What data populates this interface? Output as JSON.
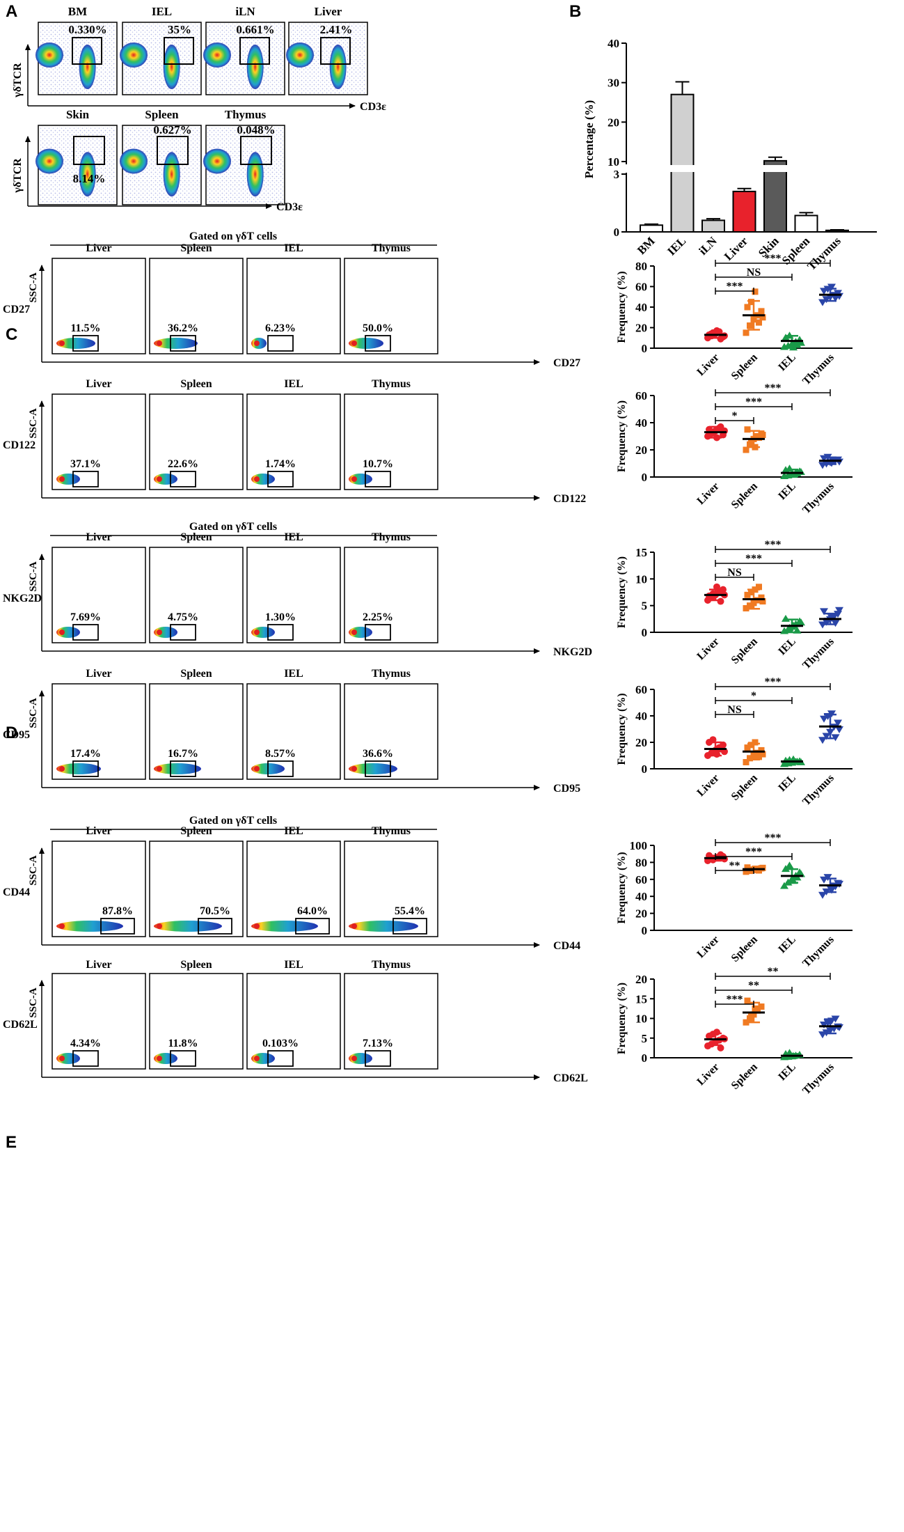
{
  "figure": {
    "panel_letters": {
      "a": "A",
      "b": "B",
      "c": "C",
      "d": "D",
      "e": "E"
    },
    "gated_label": "Gated on   γδT cells",
    "ylab_ssc": "SSC-A"
  },
  "panel_a": {
    "y_label": "γδTCR",
    "x_label": "CD3ε",
    "plots": [
      {
        "tissue": "BM",
        "pct": "0.330%"
      },
      {
        "tissue": "IEL",
        "pct": "35%"
      },
      {
        "tissue": "iLN",
        "pct": "0.661%"
      },
      {
        "tissue": "Liver",
        "pct": "2.41%"
      },
      {
        "tissue": "Skin",
        "pct": "8.14%"
      },
      {
        "tissue": "Spleen",
        "pct": "0.627%"
      },
      {
        "tissue": "Thymus",
        "pct": "0.048%"
      }
    ]
  },
  "panel_c": {
    "rows": [
      {
        "marker": "CD27",
        "pcts": [
          "11.5%",
          "36.2%",
          "6.23%",
          "50.0%"
        ]
      },
      {
        "marker": "CD122",
        "pcts": [
          "37.1%",
          "22.6%",
          "1.74%",
          "10.7%"
        ]
      }
    ]
  },
  "panel_d": {
    "rows": [
      {
        "marker": "NKG2D",
        "pcts": [
          "7.69%",
          "4.75%",
          "1.30%",
          "2.25%"
        ]
      },
      {
        "marker": "CD95",
        "pcts": [
          "17.4%",
          "16.7%",
          "8.57%",
          "36.6%"
        ]
      }
    ]
  },
  "panel_e": {
    "rows": [
      {
        "marker": "CD44",
        "pcts": [
          "87.8%",
          "70.5%",
          "64.0%",
          "55.4%"
        ]
      },
      {
        "marker": "CD62L",
        "pcts": [
          "4.34%",
          "11.8%",
          "0.103%",
          "7.13%"
        ]
      }
    ]
  },
  "tissues4": [
    "Liver",
    "Spleen",
    "IEL",
    "Thymus"
  ],
  "colors": {
    "liver": "#e8222c",
    "spleen": "#f07a22",
    "iel": "#1a9a48",
    "thymus": "#2a45a8",
    "bar_light": "#d0d0d0",
    "bar_dark": "#5a5a5a",
    "flow_bg": "#2030b0"
  },
  "chart_data": [
    {
      "type": "bar",
      "title": "",
      "xlabel": "",
      "ylabel": "Percentage (%)",
      "categories": [
        "BM",
        "IEL",
        "iLN",
        "Liver",
        "Skin",
        "Spleen",
        "Thymus"
      ],
      "values": [
        0.35,
        27,
        0.6,
        2.1,
        10.2,
        0.85,
        0.08
      ],
      "errors": [
        0.05,
        3.2,
        0.08,
        0.15,
        0.9,
        0.15,
        0.03
      ],
      "ylim": [
        0,
        40
      ],
      "axis_break": [
        3,
        10
      ],
      "yticks": [
        0,
        3,
        10,
        20,
        30,
        40
      ],
      "bar_colors": [
        "#ffffff",
        "#d0d0d0",
        "#d0d0d0",
        "#e8222c",
        "#5a5a5a",
        "#ffffff",
        "#5a5a5a"
      ]
    },
    {
      "type": "scatter",
      "panel": "C",
      "marker": "CD27",
      "ylabel": "Frequency (%)",
      "categories": [
        "Liver",
        "Spleen",
        "IEL",
        "Thymus"
      ],
      "means": [
        13,
        32,
        7,
        52
      ],
      "sd": [
        3,
        14,
        5,
        6
      ],
      "points": [
        [
          10,
          12,
          14,
          16,
          11,
          13,
          15,
          17,
          9,
          12
        ],
        [
          15,
          22,
          28,
          32,
          36,
          40,
          45,
          55,
          25,
          30
        ],
        [
          1,
          2,
          4,
          6,
          8,
          10,
          12,
          0.5,
          3,
          5
        ],
        [
          45,
          48,
          50,
          52,
          54,
          56,
          58,
          60,
          49,
          51
        ]
      ],
      "ylim": [
        0,
        80
      ],
      "yticks": [
        0,
        20,
        40,
        60,
        80
      ],
      "sig": [
        {
          "from": 0,
          "to": 1,
          "label": "***"
        },
        {
          "from": 0,
          "to": 2,
          "label": "NS"
        },
        {
          "from": 0,
          "to": 3,
          "label": "***"
        }
      ]
    },
    {
      "type": "scatter",
      "panel": "C",
      "marker": "CD122",
      "ylabel": "Frequency (%)",
      "categories": [
        "Liver",
        "Spleen",
        "IEL",
        "Thymus"
      ],
      "means": [
        33,
        28,
        3,
        12
      ],
      "sd": [
        4,
        6,
        2.5,
        2.5
      ],
      "points": [
        [
          30,
          32,
          34,
          36,
          31,
          35,
          33,
          29,
          37,
          34
        ],
        [
          20,
          24,
          28,
          30,
          32,
          35,
          26,
          22,
          29,
          31
        ],
        [
          0.5,
          1,
          2,
          3,
          4,
          5,
          6,
          1.5,
          2.5,
          3.5
        ],
        [
          9,
          10,
          11,
          12,
          13,
          14,
          15,
          10.5,
          12.5,
          11.5
        ]
      ],
      "ylim": [
        0,
        60
      ],
      "yticks": [
        0,
        20,
        40,
        60
      ],
      "sig": [
        {
          "from": 0,
          "to": 1,
          "label": "*"
        },
        {
          "from": 0,
          "to": 2,
          "label": "***"
        },
        {
          "from": 0,
          "to": 3,
          "label": "***"
        }
      ]
    },
    {
      "type": "scatter",
      "panel": "D",
      "marker": "NKG2D",
      "ylabel": "Frequency (%)",
      "categories": [
        "Liver",
        "Spleen",
        "IEL",
        "Thymus"
      ],
      "means": [
        7,
        6.2,
        1.2,
        2.5
      ],
      "sd": [
        1,
        1.8,
        1.2,
        1
      ],
      "points": [
        [
          6,
          6.5,
          7,
          7.5,
          8,
          6.8,
          7.2,
          8.5,
          5.8,
          7
        ],
        [
          4.5,
          5,
          5.5,
          6,
          6.5,
          7,
          7.5,
          8,
          8.5,
          5.8
        ],
        [
          0.2,
          0.5,
          1,
          1.5,
          2,
          2.5,
          0.8,
          1.2,
          0.3,
          1.8
        ],
        [
          1.5,
          2,
          2.5,
          3,
          3.5,
          4,
          2.2,
          2.8,
          1.8,
          4.2
        ]
      ],
      "ylim": [
        0,
        15
      ],
      "yticks": [
        0,
        5,
        10,
        15
      ],
      "sig": [
        {
          "from": 0,
          "to": 1,
          "label": "NS"
        },
        {
          "from": 0,
          "to": 2,
          "label": "***"
        },
        {
          "from": 0,
          "to": 3,
          "label": "***"
        }
      ]
    },
    {
      "type": "scatter",
      "panel": "D",
      "marker": "CD95",
      "ylabel": "Frequency (%)",
      "categories": [
        "Liver",
        "Spleen",
        "IEL",
        "Thymus"
      ],
      "means": [
        15,
        13,
        5.5,
        32
      ],
      "sd": [
        5,
        6,
        1.5,
        9
      ],
      "points": [
        [
          10,
          12,
          14,
          16,
          18,
          20,
          22,
          11,
          15,
          13
        ],
        [
          5,
          8,
          10,
          12,
          14,
          16,
          18,
          20,
          9,
          11
        ],
        [
          3.5,
          4,
          4.5,
          5,
          5.5,
          6,
          6.5,
          7,
          5.2,
          4.8
        ],
        [
          22,
          25,
          28,
          32,
          35,
          38,
          40,
          42,
          24,
          30
        ]
      ],
      "ylim": [
        0,
        60
      ],
      "yticks": [
        0,
        20,
        40,
        60
      ],
      "sig": [
        {
          "from": 0,
          "to": 1,
          "label": "NS"
        },
        {
          "from": 0,
          "to": 2,
          "label": "*"
        },
        {
          "from": 0,
          "to": 3,
          "label": "***"
        }
      ]
    },
    {
      "type": "scatter",
      "panel": "E",
      "marker": "CD44",
      "ylabel": "Frequency (%)",
      "categories": [
        "Liver",
        "Spleen",
        "IEL",
        "Thymus"
      ],
      "means": [
        85,
        72,
        64,
        53
      ],
      "sd": [
        3,
        2,
        8,
        8
      ],
      "points": [
        [
          82,
          84,
          85,
          86,
          87,
          88,
          83,
          86,
          89,
          84
        ],
        [
          69,
          70,
          71,
          72,
          73,
          74,
          71.5,
          72.5,
          70.5,
          73.5
        ],
        [
          52,
          56,
          60,
          64,
          68,
          72,
          76,
          58,
          62,
          66
        ],
        [
          42,
          46,
          50,
          53,
          56,
          60,
          63,
          48,
          52,
          55
        ]
      ],
      "ylim": [
        0,
        100
      ],
      "yticks": [
        0,
        20,
        40,
        60,
        80,
        100
      ],
      "sig": [
        {
          "from": 0,
          "to": 1,
          "label": "**"
        },
        {
          "from": 0,
          "to": 2,
          "label": "***"
        },
        {
          "from": 0,
          "to": 3,
          "label": "***"
        }
      ]
    },
    {
      "type": "scatter",
      "panel": "E",
      "marker": "CD62L",
      "ylabel": "Frequency (%)",
      "categories": [
        "Liver",
        "Spleen",
        "IEL",
        "Thymus"
      ],
      "means": [
        4.7,
        11.5,
        0.5,
        8
      ],
      "sd": [
        1.5,
        2.5,
        0.5,
        1.8
      ],
      "points": [
        [
          3,
          3.5,
          4,
          4.5,
          5,
          5.5,
          6,
          6.5,
          2.5,
          4.8
        ],
        [
          9,
          10,
          11,
          12,
          13,
          14.5,
          10.5,
          12.5
        ],
        [
          0.1,
          0.2,
          0.3,
          0.5,
          0.7,
          0.9,
          1.2,
          0.4
        ],
        [
          6,
          6.5,
          7,
          7.5,
          8,
          8.5,
          9,
          9.5,
          10,
          7.8
        ]
      ],
      "ylim": [
        0,
        20
      ],
      "yticks": [
        0,
        5,
        10,
        15,
        20
      ],
      "sig": [
        {
          "from": 0,
          "to": 1,
          "label": "***"
        },
        {
          "from": 0,
          "to": 2,
          "label": "**"
        },
        {
          "from": 0,
          "to": 3,
          "label": "**"
        }
      ]
    }
  ]
}
